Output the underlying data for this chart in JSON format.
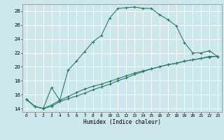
{
  "xlabel": "Humidex (Indice chaleur)",
  "ylabel": "",
  "background_color": "#cde8ec",
  "grid_color": "#b0d8dc",
  "line_color": "#2a7a6a",
  "xlim": [
    -0.5,
    23.5
  ],
  "ylim": [
    13.5,
    29.0
  ],
  "xticks": [
    0,
    1,
    2,
    3,
    4,
    5,
    6,
    7,
    8,
    9,
    10,
    11,
    12,
    13,
    14,
    15,
    16,
    17,
    18,
    19,
    20,
    21,
    22,
    23
  ],
  "yticks": [
    14,
    16,
    18,
    20,
    22,
    24,
    26,
    28
  ],
  "series": [
    {
      "x": [
        0,
        1,
        2,
        3,
        4,
        5,
        6,
        7,
        8,
        9,
        10,
        11,
        12,
        13,
        14,
        15,
        16,
        17,
        18,
        19,
        20,
        21,
        22,
        23
      ],
      "y": [
        15.3,
        14.3,
        14.0,
        17.0,
        15.2,
        19.5,
        20.8,
        22.2,
        23.6,
        24.5,
        27.0,
        28.4,
        28.5,
        28.6,
        28.4,
        28.4,
        27.5,
        26.8,
        25.9,
        23.5,
        22.0,
        22.0,
        22.3,
        21.5
      ]
    },
    {
      "x": [
        0,
        1,
        2,
        3,
        4,
        5,
        6,
        7,
        8,
        9,
        10,
        11,
        12,
        13,
        14,
        15,
        16,
        17,
        18,
        19,
        20,
        21,
        22,
        23
      ],
      "y": [
        15.3,
        14.3,
        14.0,
        14.3,
        15.0,
        15.4,
        15.8,
        16.2,
        16.7,
        17.1,
        17.5,
        18.0,
        18.4,
        18.9,
        19.3,
        19.7,
        20.0,
        20.3,
        20.5,
        20.8,
        21.0,
        21.2,
        21.5,
        21.5
      ]
    },
    {
      "x": [
        0,
        1,
        2,
        3,
        4,
        5,
        6,
        7,
        8,
        9,
        10,
        11,
        12,
        13,
        14,
        15,
        16,
        17,
        18,
        19,
        20,
        21,
        22,
        23
      ],
      "y": [
        15.3,
        14.3,
        14.0,
        14.5,
        15.2,
        15.7,
        16.3,
        16.8,
        17.2,
        17.5,
        17.9,
        18.3,
        18.7,
        19.1,
        19.4,
        19.7,
        20.0,
        20.3,
        20.5,
        20.8,
        21.0,
        21.2,
        21.4,
        21.5
      ]
    }
  ]
}
